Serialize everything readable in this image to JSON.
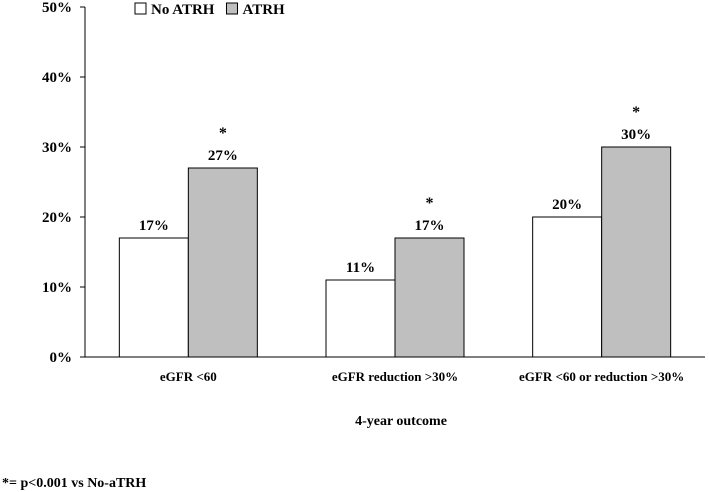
{
  "chart_data": {
    "type": "bar",
    "categories": [
      "eGFR <60",
      "eGFR reduction >30%",
      "eGFR <60 or reduction >30%"
    ],
    "series": [
      {
        "name": "No ATRH",
        "values": [
          17,
          11,
          20
        ],
        "labels": [
          "17%",
          "11%",
          "20%"
        ],
        "color": "#ffffff",
        "significance": [
          "",
          "",
          ""
        ]
      },
      {
        "name": "ATRH",
        "values": [
          27,
          17,
          30
        ],
        "labels": [
          "27%",
          "17%",
          "30%"
        ],
        "color": "#bfbfbf",
        "significance": [
          "*",
          "*",
          "*"
        ]
      }
    ],
    "y_ticks": [
      0,
      10,
      20,
      30,
      40,
      50
    ],
    "y_tick_labels": [
      "0%",
      "10%",
      "20%",
      "30%",
      "40%",
      "50%"
    ],
    "ylim": [
      0,
      50
    ],
    "xlabel": "4-year outcome",
    "ylabel": "",
    "title": "",
    "grid": false,
    "legend_position": "top-left",
    "footnote": "*= p<0.001 vs No-aTRH"
  }
}
